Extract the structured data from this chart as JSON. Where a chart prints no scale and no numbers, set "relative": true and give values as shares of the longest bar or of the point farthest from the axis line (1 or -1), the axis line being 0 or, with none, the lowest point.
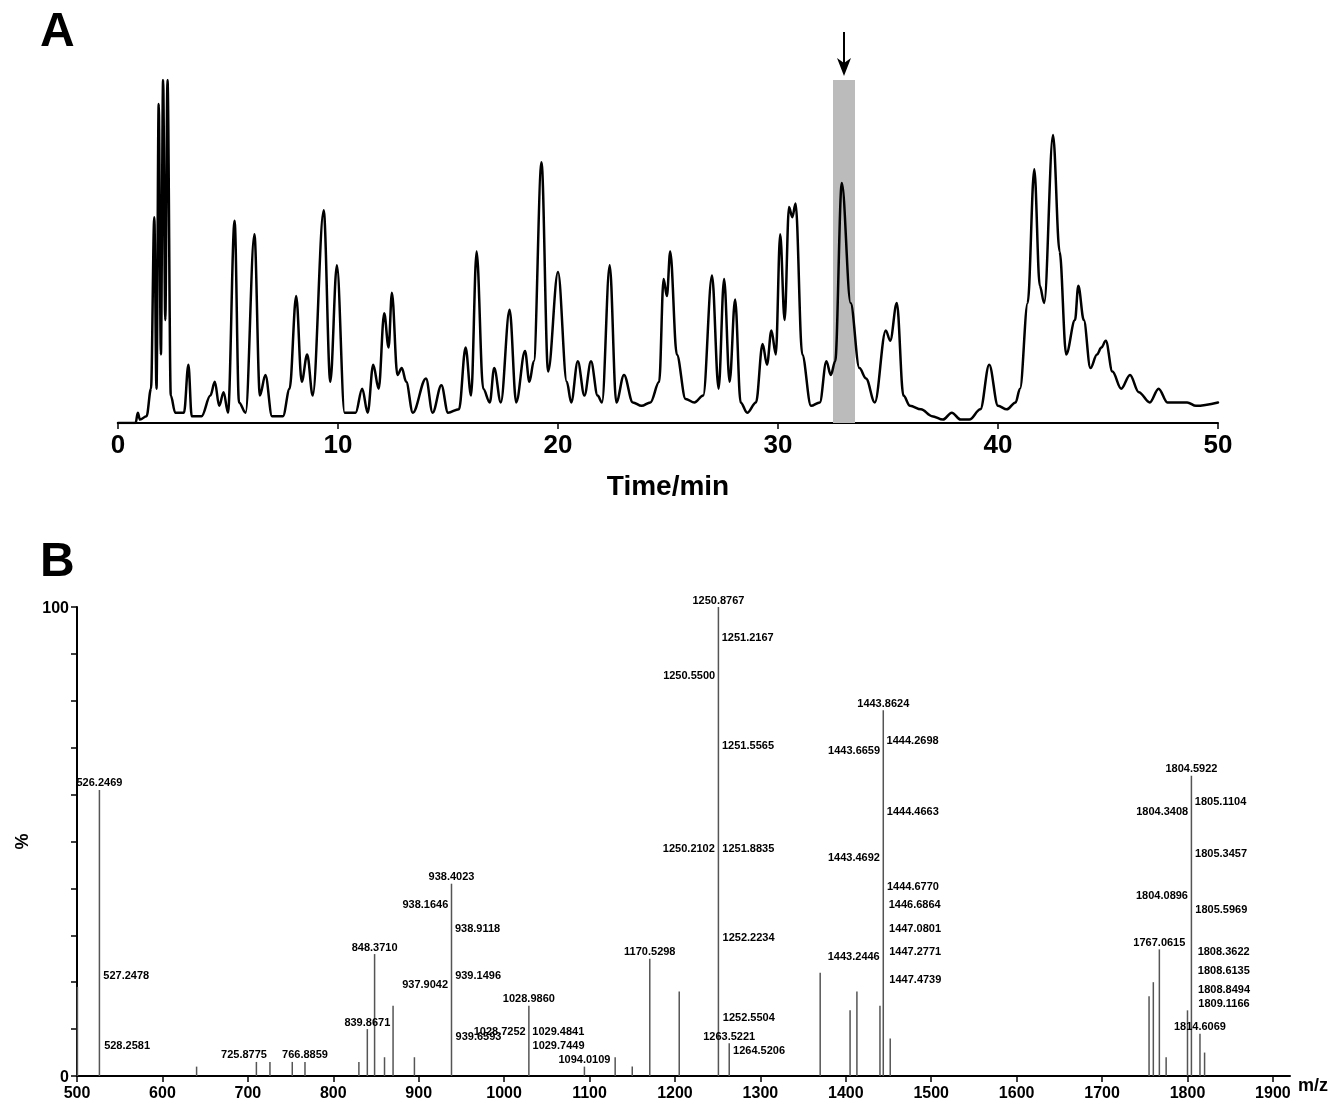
{
  "chart_data": [
    {
      "type": "line",
      "title": "A",
      "xlabel": "Time/min",
      "relative": true,
      "xlim": [
        0,
        50
      ],
      "xticks": [
        0,
        10,
        20,
        30,
        40,
        50
      ],
      "marker": "none",
      "line_style": "solid",
      "bands": [
        {
          "axis": "x",
          "from": 32.5,
          "to": 33.5,
          "color": "#bbbbbb"
        }
      ],
      "series": [
        {
          "color": "#000000",
          "x": [
            0,
            0.8,
            0.9,
            1.0,
            1.3,
            1.5,
            1.65,
            1.75,
            1.85,
            1.95,
            2.05,
            2.15,
            2.25,
            2.4,
            2.6,
            3.0,
            3.2,
            3.35,
            3.8,
            4.2,
            4.4,
            4.6,
            4.8,
            5.0,
            5.3,
            5.5,
            5.8,
            6.2,
            6.45,
            6.7,
            7.0,
            7.5,
            7.8,
            8.1,
            8.35,
            8.6,
            8.85,
            9.35,
            9.65,
            9.95,
            10.3,
            10.8,
            11.1,
            11.35,
            11.6,
            11.85,
            12.1,
            12.3,
            12.45,
            12.7,
            12.9,
            13.1,
            13.4,
            14.0,
            14.3,
            14.7,
            15.0,
            15.5,
            15.8,
            16.05,
            16.3,
            16.6,
            16.9,
            17.1,
            17.4,
            17.8,
            18.1,
            18.5,
            18.7,
            18.9,
            19.25,
            19.55,
            20.0,
            20.4,
            20.6,
            20.9,
            21.2,
            21.5,
            21.8,
            22.0,
            22.35,
            22.65,
            23.0,
            23.4,
            23.8,
            24.2,
            24.6,
            24.8,
            24.95,
            25.1,
            25.4,
            25.8,
            26.2,
            26.6,
            27.0,
            27.3,
            27.55,
            27.8,
            28.05,
            28.3,
            28.6,
            29.0,
            29.3,
            29.5,
            29.7,
            29.9,
            30.1,
            30.3,
            30.5,
            30.65,
            30.8,
            31.1,
            31.5,
            31.9,
            32.2,
            32.4,
            32.6,
            32.9,
            33.3,
            33.7,
            34.0,
            34.4,
            34.9,
            35.1,
            35.4,
            35.7,
            36.0,
            36.5,
            37.0,
            37.5,
            37.9,
            38.3,
            38.7,
            39.2,
            39.6,
            40.0,
            40.4,
            40.8,
            41.0,
            41.35,
            41.65,
            41.9,
            42.1,
            42.5,
            42.8,
            43.1,
            43.5,
            43.65,
            43.9,
            44.2,
            44.5,
            44.7,
            44.9,
            45.2,
            45.6,
            46.0,
            46.4,
            46.9,
            47.3,
            47.7,
            48.2,
            48.6,
            49.0,
            50.0
          ],
          "values": [
            0,
            0,
            0.03,
            0.01,
            0.02,
            0.1,
            0.6,
            0.1,
            0.93,
            0.2,
            1,
            0.3,
            1,
            0.08,
            0.03,
            0.03,
            0.17,
            0.02,
            0.02,
            0.08,
            0.12,
            0.05,
            0.09,
            0.03,
            0.59,
            0.06,
            0.03,
            0.55,
            0.08,
            0.14,
            0.02,
            0.02,
            0.1,
            0.37,
            0.12,
            0.2,
            0.08,
            0.62,
            0.12,
            0.46,
            0.03,
            0.03,
            0.1,
            0.03,
            0.17,
            0.1,
            0.32,
            0.22,
            0.38,
            0.14,
            0.16,
            0.12,
            0.03,
            0.13,
            0.03,
            0.11,
            0.03,
            0.04,
            0.22,
            0.08,
            0.5,
            0.1,
            0.06,
            0.16,
            0.06,
            0.33,
            0.06,
            0.21,
            0.12,
            0.18,
            0.76,
            0.15,
            0.44,
            0.12,
            0.06,
            0.18,
            0.08,
            0.18,
            0.08,
            0.06,
            0.46,
            0.06,
            0.14,
            0.06,
            0.05,
            0.06,
            0.12,
            0.42,
            0.37,
            0.5,
            0.2,
            0.07,
            0.06,
            0.08,
            0.43,
            0.1,
            0.42,
            0.12,
            0.36,
            0.06,
            0.03,
            0.06,
            0.23,
            0.17,
            0.27,
            0.2,
            0.55,
            0.3,
            0.63,
            0.6,
            0.64,
            0.2,
            0.05,
            0.06,
            0.18,
            0.14,
            0.18,
            0.7,
            0.35,
            0.16,
            0.13,
            0.06,
            0.27,
            0.24,
            0.35,
            0.08,
            0.05,
            0.04,
            0.02,
            0.01,
            0.03,
            0.01,
            0.01,
            0.04,
            0.17,
            0.05,
            0.04,
            0.06,
            0.1,
            0.35,
            0.74,
            0.4,
            0.35,
            0.84,
            0.5,
            0.2,
            0.3,
            0.4,
            0.3,
            0.16,
            0.2,
            0.22,
            0.24,
            0.15,
            0.1,
            0.14,
            0.09,
            0.06,
            0.1,
            0.06,
            0.06,
            0.06,
            0.05,
            0.06
          ]
        }
      ]
    },
    {
      "type": "bar",
      "title": "B",
      "xlabel": "m/z",
      "ylabel": "%",
      "xlim": [
        500,
        1920
      ],
      "xticks": [
        500,
        600,
        700,
        800,
        900,
        1000,
        1100,
        1200,
        1300,
        1400,
        1500,
        1600,
        1700,
        1800,
        1900
      ],
      "ylim": [
        0,
        100
      ],
      "yticks": [
        0,
        {
          "value": 10,
          "label": null
        },
        {
          "value": 20,
          "label": null
        },
        {
          "value": 30,
          "label": null
        },
        {
          "value": 40,
          "label": null
        },
        {
          "value": 50,
          "label": null
        },
        {
          "value": 60,
          "label": null
        },
        {
          "value": 70,
          "label": null
        },
        {
          "value": 80,
          "label": null
        },
        {
          "value": 90,
          "label": null
        },
        100
      ],
      "series": [
        {
          "color": "#555555",
          "x": [
            500.5,
            526.2469,
            640,
            710,
            725.8775,
            752,
            766.8859,
            830,
            839.8671,
            848.371,
            860,
            870,
            895,
            938.4023,
            1028.986,
            1094.0109,
            1130,
            1150,
            1170.5298,
            1205,
            1250.8767,
            1263.5221,
            1370,
            1405,
            1413,
            1440,
            1443.8624,
            1452,
            1755,
            1760,
            1767.0615,
            1775,
            1800,
            1804.5922,
            1814.6069,
            1820
          ],
          "values": [
            19,
            61,
            2,
            3,
            3,
            3,
            3,
            3,
            10,
            26,
            4,
            15,
            4,
            41,
            15,
            2,
            4,
            2,
            25,
            18,
            100,
            7,
            22,
            14,
            18,
            15,
            78,
            8,
            17,
            20,
            27,
            4,
            14,
            64,
            9,
            5
          ]
        }
      ],
      "annotations": [
        {
          "text": "526.2469",
          "x": 526.2469,
          "y": 61
        },
        {
          "text": "527.2478",
          "x": 527.2478,
          "y": 20
        },
        {
          "text": "528.2581",
          "x": 528.2581,
          "y": 5
        },
        {
          "text": "725.8775",
          "x": 725.8775,
          "y": 3
        },
        {
          "text": "766.8859",
          "x": 766.8859,
          "y": 3
        },
        {
          "text": "839.8671",
          "x": 839.8671,
          "y": 10
        },
        {
          "text": "848.3710",
          "x": 848.371,
          "y": 26
        },
        {
          "text": "937.9042",
          "x": 937.9042,
          "y": 18
        },
        {
          "text": "938.1646",
          "x": 938.1646,
          "y": 35
        },
        {
          "text": "938.4023",
          "x": 938.4023,
          "y": 41
        },
        {
          "text": "938.9118",
          "x": 938.9118,
          "y": 30
        },
        {
          "text": "939.1496",
          "x": 939.1496,
          "y": 20
        },
        {
          "text": "939.6593",
          "x": 939.6593,
          "y": 7
        },
        {
          "text": "1028.7252",
          "x": 1028.7252,
          "y": 8
        },
        {
          "text": "1028.9860",
          "x": 1028.986,
          "y": 15
        },
        {
          "text": "1029.4841",
          "x": 1029.4841,
          "y": 8
        },
        {
          "text": "1029.7449",
          "x": 1029.7449,
          "y": 5
        },
        {
          "text": "1094.0109",
          "x": 1094.0109,
          "y": 2
        },
        {
          "text": "1170.5298",
          "x": 1170.5298,
          "y": 25
        },
        {
          "text": "1250.2102",
          "x": 1250.2102,
          "y": 47
        },
        {
          "text": "1250.5500",
          "x": 1250.55,
          "y": 84
        },
        {
          "text": "1250.8767",
          "x": 1250.8767,
          "y": 100
        },
        {
          "text": "1251.2167",
          "x": 1251.2167,
          "y": 92
        },
        {
          "text": "1251.5565",
          "x": 1251.5565,
          "y": 69
        },
        {
          "text": "1251.8835",
          "x": 1251.8835,
          "y": 47
        },
        {
          "text": "1252.2234",
          "x": 1252.2234,
          "y": 28
        },
        {
          "text": "1252.5504",
          "x": 1252.5504,
          "y": 11
        },
        {
          "text": "1263.5221",
          "x": 1263.5221,
          "y": 7
        },
        {
          "text": "1264.5206",
          "x": 1264.5206,
          "y": 4
        },
        {
          "text": "1443.2446",
          "x": 1443.2446,
          "y": 24
        },
        {
          "text": "1443.4692",
          "x": 1443.4692,
          "y": 45
        },
        {
          "text": "1443.6659",
          "x": 1443.6659,
          "y": 68
        },
        {
          "text": "1443.8624",
          "x": 1443.8624,
          "y": 78
        },
        {
          "text": "1444.2698",
          "x": 1444.2698,
          "y": 70
        },
        {
          "text": "1444.4663",
          "x": 1444.4663,
          "y": 55
        },
        {
          "text": "1444.6770",
          "x": 1444.677,
          "y": 39
        },
        {
          "text": "1446.6864",
          "x": 1446.6864,
          "y": 35
        },
        {
          "text": "1447.0801",
          "x": 1447.0801,
          "y": 30
        },
        {
          "text": "1447.2771",
          "x": 1447.2771,
          "y": 25
        },
        {
          "text": "1447.4739",
          "x": 1447.4739,
          "y": 19
        },
        {
          "text": "1767.0615",
          "x": 1767.0615,
          "y": 27
        },
        {
          "text": "1804.0896",
          "x": 1804.0896,
          "y": 37
        },
        {
          "text": "1804.3408",
          "x": 1804.3408,
          "y": 55
        },
        {
          "text": "1804.5922",
          "x": 1804.5922,
          "y": 64
        },
        {
          "text": "1805.1104",
          "x": 1805.1104,
          "y": 57
        },
        {
          "text": "1805.3457",
          "x": 1805.3457,
          "y": 46
        },
        {
          "text": "1805.5969",
          "x": 1805.5969,
          "y": 34
        },
        {
          "text": "1808.3622",
          "x": 1808.3622,
          "y": 25
        },
        {
          "text": "1808.6135",
          "x": 1808.6135,
          "y": 21
        },
        {
          "text": "1808.8494",
          "x": 1808.8494,
          "y": 17
        },
        {
          "text": "1809.1166",
          "x": 1809.1166,
          "y": 14
        },
        {
          "text": "1814.6069",
          "x": 1814.6069,
          "y": 9
        }
      ]
    }
  ]
}
